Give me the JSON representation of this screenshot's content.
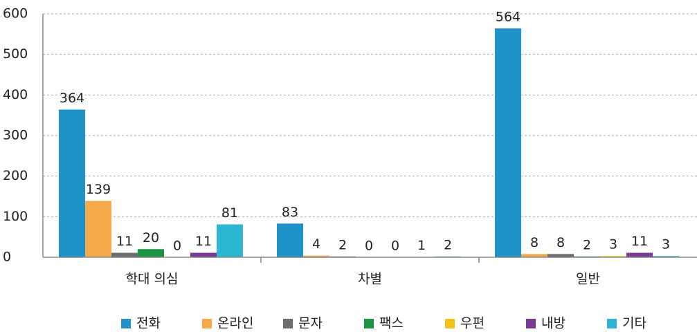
{
  "chart_data": {
    "type": "bar",
    "categories": [
      "학대 의심",
      "차별",
      "일반"
    ],
    "series": [
      {
        "name": "전화",
        "color": "#1f93c9",
        "values": [
          364,
          83,
          564
        ]
      },
      {
        "name": "온라인",
        "color": "#f5a94a",
        "values": [
          139,
          4,
          8
        ]
      },
      {
        "name": "문자",
        "color": "#6d6d6d",
        "values": [
          11,
          2,
          8
        ]
      },
      {
        "name": "팩스",
        "color": "#1a9440",
        "values": [
          20,
          0,
          2
        ]
      },
      {
        "name": "우편",
        "color": "#f3c31c",
        "values": [
          0,
          0,
          3
        ]
      },
      {
        "name": "내방",
        "color": "#7b3a96",
        "values": [
          11,
          1,
          11
        ]
      },
      {
        "name": "기타",
        "color": "#2db7d3",
        "values": [
          81,
          2,
          3
        ]
      }
    ],
    "ylim": [
      0,
      600
    ],
    "yticks": [
      0,
      100,
      200,
      300,
      400,
      500,
      600
    ],
    "grid": true,
    "legend": "bottom"
  }
}
